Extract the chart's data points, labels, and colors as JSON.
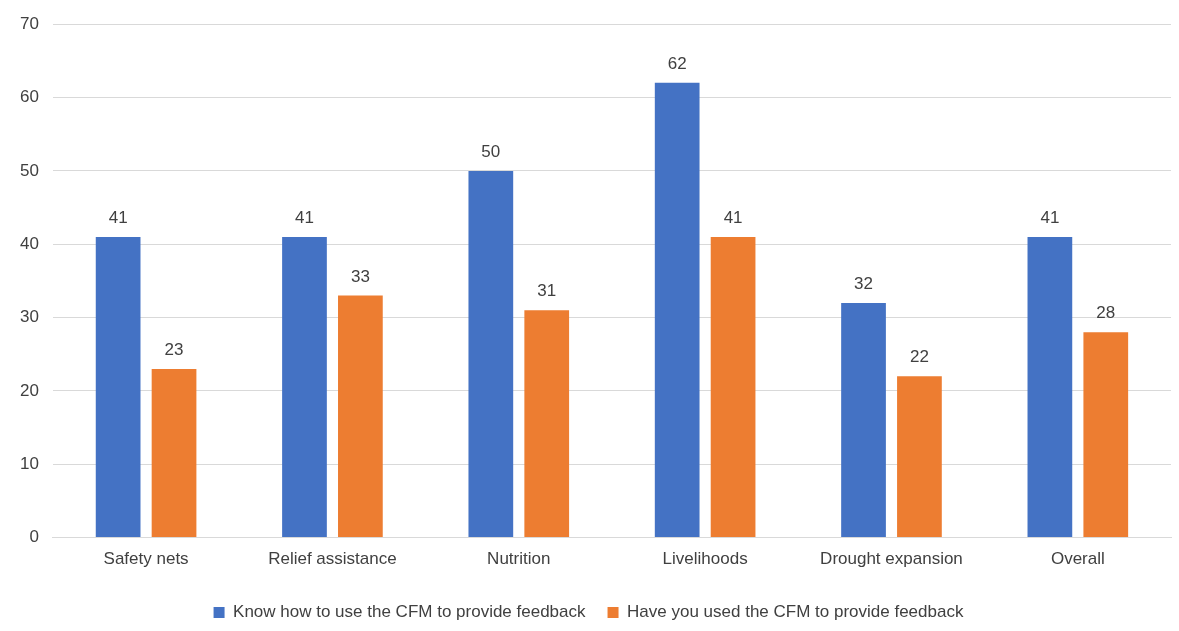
{
  "chart_data": {
    "type": "bar",
    "categories": [
      "Safety nets",
      "Relief assistance",
      "Nutrition",
      "Livelihoods",
      "Drought expansion",
      "Overall"
    ],
    "series": [
      {
        "name": "Know how to use the CFM to provide feedback",
        "color": "#4472c4",
        "values": [
          41,
          41,
          50,
          62,
          32,
          41
        ]
      },
      {
        "name": "Have you used the CFM to provide feedback",
        "color": "#ed7d31",
        "values": [
          23,
          33,
          31,
          41,
          22,
          28
        ]
      }
    ],
    "ylim": [
      0,
      70
    ],
    "yticks": [
      0,
      10,
      20,
      30,
      40,
      50,
      60,
      70
    ],
    "grid": "y",
    "legend": "bottom",
    "data_labels": true
  }
}
